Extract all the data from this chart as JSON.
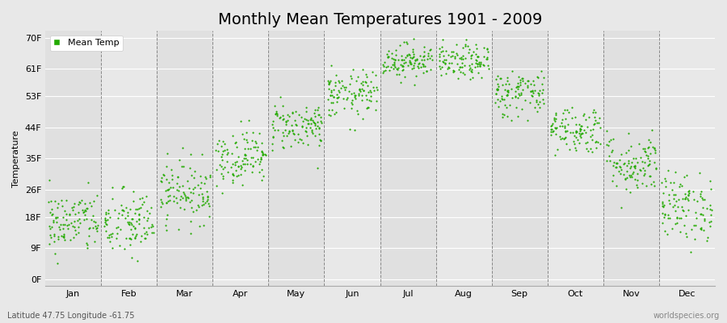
{
  "title": "Monthly Mean Temperatures 1901 - 2009",
  "ylabel": "Temperature",
  "xlabel_bottom_left": "Latitude 47.75 Longitude -61.75",
  "xlabel_bottom_right": "worldspecies.org",
  "legend_label": "Mean Temp",
  "background_color": "#e8e8e8",
  "plot_bg_color": "#e8e8e8",
  "dot_color": "#22aa00",
  "dot_size": 2.5,
  "yticks": [
    0,
    9,
    18,
    26,
    35,
    44,
    53,
    61,
    70
  ],
  "ytick_labels": [
    "0F",
    "9F",
    "18F",
    "26F",
    "35F",
    "44F",
    "53F",
    "61F",
    "70F"
  ],
  "month_names": [
    "Jan",
    "Feb",
    "Mar",
    "Apr",
    "May",
    "Jun",
    "Jul",
    "Aug",
    "Sep",
    "Oct",
    "Nov",
    "Dec"
  ],
  "month_mean_temps_F": [
    16.5,
    16.0,
    25.5,
    35.5,
    44.5,
    53.5,
    63.5,
    63.0,
    54.0,
    43.5,
    33.5,
    21.0
  ],
  "month_spread_F": [
    4.5,
    5.0,
    4.5,
    4.0,
    3.5,
    3.5,
    2.5,
    2.5,
    3.5,
    3.5,
    4.5,
    5.0
  ],
  "band_colors": [
    "#e0e0e0",
    "#e8e8e8"
  ],
  "n_years": 109,
  "year_start": 1901,
  "year_end": 2009,
  "dashed_line_color": "#888888",
  "grid_color": "#ffffff",
  "spine_color": "#aaaaaa",
  "title_fontsize": 14,
  "axis_fontsize": 8,
  "tick_fontsize": 8,
  "legend_fontsize": 8
}
